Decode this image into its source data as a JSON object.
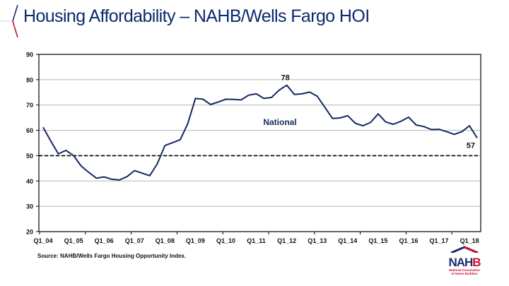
{
  "page": {
    "title": "Housing Affordability – NAHB/Wells Fargo HOI",
    "source": "Source: NAHB/Wells Fargo Housing Opportunity Index.",
    "logo": {
      "word_main": "NAH",
      "word_accent": "B",
      "subtitle_line1": "National Association",
      "subtitle_line2": "of Home Builders",
      "colors": {
        "navy": "#1b2d6b",
        "red": "#c8102e"
      }
    }
  },
  "chart_data": {
    "type": "line",
    "title": "",
    "xlabel": "",
    "ylabel": "",
    "ylim": [
      20,
      90
    ],
    "yticks": [
      20,
      30,
      40,
      50,
      60,
      70,
      80,
      90
    ],
    "grid": true,
    "xtick_labels": [
      "Q1_04",
      "Q1_05",
      "Q1_06",
      "Q1_07",
      "Q1_08",
      "Q1_09",
      "Q1_10",
      "Q1_11",
      "Q1_12",
      "Q1_13",
      "Q1_14",
      "Q1_15",
      "Q1_16",
      "Q1_17",
      "Q1_18"
    ],
    "x": [
      "Q1_04",
      "Q2_04",
      "Q3_04",
      "Q4_04",
      "Q1_05",
      "Q2_05",
      "Q3_05",
      "Q4_05",
      "Q1_06",
      "Q2_06",
      "Q3_06",
      "Q4_06",
      "Q1_07",
      "Q2_07",
      "Q3_07",
      "Q4_07",
      "Q1_08",
      "Q2_08",
      "Q3_08",
      "Q4_08",
      "Q1_09",
      "Q2_09",
      "Q3_09",
      "Q4_09",
      "Q1_10",
      "Q2_10",
      "Q3_10",
      "Q4_10",
      "Q1_11",
      "Q2_11",
      "Q3_11",
      "Q4_11",
      "Q1_12",
      "Q2_12",
      "Q3_12",
      "Q4_12",
      "Q1_13",
      "Q2_13",
      "Q3_13",
      "Q4_13",
      "Q1_14",
      "Q2_14",
      "Q3_14",
      "Q4_14",
      "Q1_15",
      "Q2_15",
      "Q3_15",
      "Q4_15",
      "Q1_16",
      "Q2_16",
      "Q3_16",
      "Q4_16",
      "Q1_17",
      "Q2_17",
      "Q3_17",
      "Q4_17",
      "Q1_18",
      "Q2_18"
    ],
    "series": [
      {
        "name": "National",
        "color": "#14295e",
        "values": [
          61.2,
          55.8,
          50.7,
          52.1,
          50.0,
          45.9,
          43.4,
          41.1,
          41.6,
          40.7,
          40.4,
          41.7,
          44.1,
          43.1,
          42.1,
          46.8,
          54.0,
          55.1,
          56.3,
          62.6,
          72.6,
          72.3,
          70.2,
          71.2,
          72.3,
          72.2,
          72.0,
          73.9,
          74.4,
          72.6,
          73.0,
          75.9,
          77.8,
          74.2,
          74.4,
          75.1,
          73.5,
          69.1,
          64.7,
          64.9,
          65.8,
          62.8,
          61.8,
          63.1,
          66.5,
          63.3,
          62.4,
          63.6,
          65.2,
          62.1,
          61.5,
          60.3,
          60.4,
          59.5,
          58.4,
          59.5,
          61.8,
          57.0
        ]
      }
    ],
    "reference_line": {
      "value": 50,
      "style": "dashed",
      "color": "#000000"
    },
    "annotations": [
      {
        "text": "78",
        "at_index": 32
      },
      {
        "text": "57",
        "at_index": 57
      },
      {
        "text": "National",
        "type": "series-label"
      }
    ]
  }
}
